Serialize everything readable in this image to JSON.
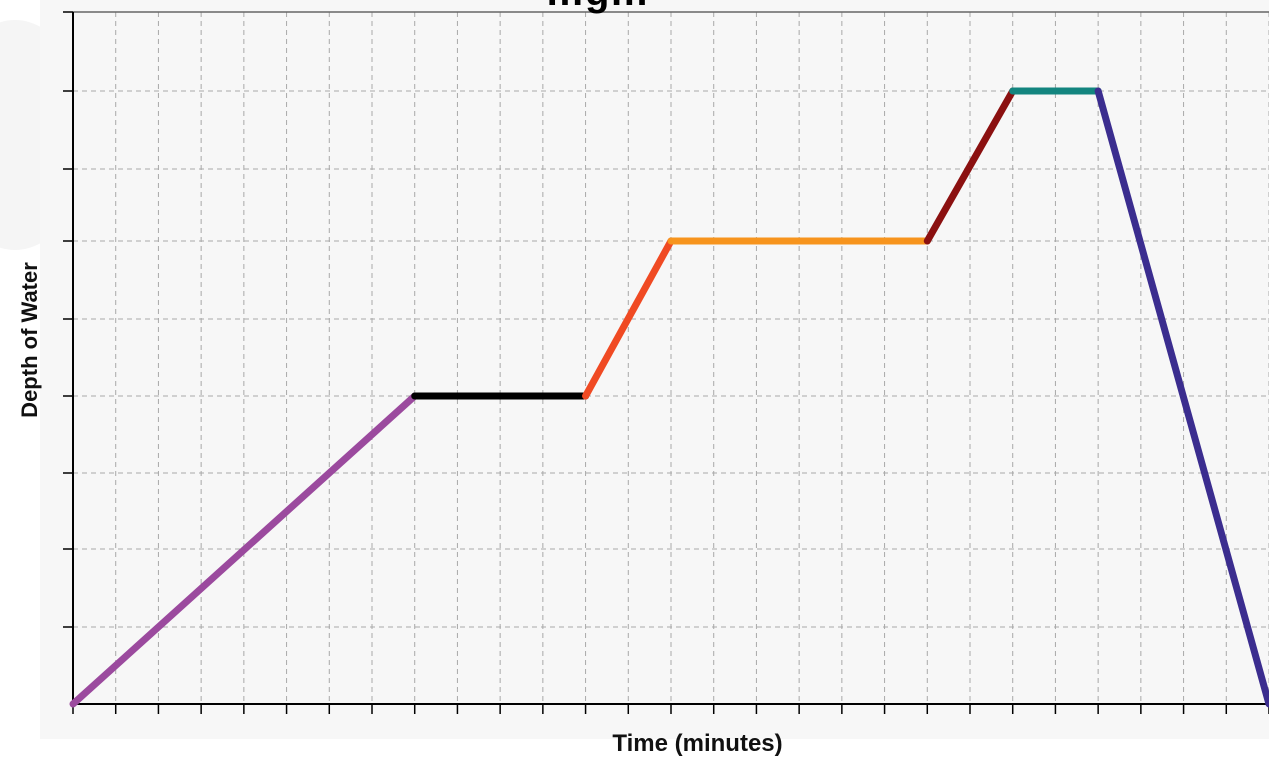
{
  "chart_data": {
    "type": "line",
    "title": "…g…",
    "xlabel": "Time (minutes)",
    "ylabel": "Depth of Water",
    "xlim": [
      0,
      28
    ],
    "ylim": [
      0,
      9
    ],
    "grid": true,
    "x_tick_labels_shown": false,
    "y_tick_labels_shown": false,
    "series": [
      {
        "color": "#9b4a9e",
        "points": [
          [
            0,
            0
          ],
          [
            8,
            4
          ]
        ]
      },
      {
        "color": "#000000",
        "points": [
          [
            8,
            4
          ],
          [
            12,
            4
          ]
        ]
      },
      {
        "color": "#f04a23",
        "points": [
          [
            12,
            4
          ],
          [
            14,
            6
          ]
        ]
      },
      {
        "color": "#f7941d",
        "points": [
          [
            14,
            6
          ],
          [
            20,
            6
          ]
        ]
      },
      {
        "color": "#8b1010",
        "points": [
          [
            20,
            6
          ],
          [
            22,
            8
          ]
        ]
      },
      {
        "color": "#13857f",
        "points": [
          [
            22,
            8
          ],
          [
            24,
            8
          ]
        ]
      },
      {
        "color": "#3b2d8f",
        "points": [
          [
            24,
            8
          ],
          [
            28,
            0
          ]
        ]
      }
    ]
  }
}
